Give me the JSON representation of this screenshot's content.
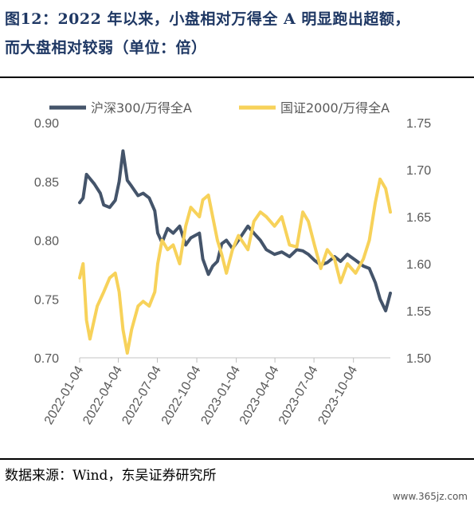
{
  "title_line1": "图12：2022 年以来，小盘相对万得全 A 明显跑出超额，",
  "title_line2": "而大盘相对较弱（单位：倍）",
  "source": "数据来源：Wind，东吴证券研究所",
  "watermark": "www.365jz.com",
  "colors": {
    "hs300": "#44546a",
    "zz2000": "#f7d25a"
  },
  "chart_data": {
    "type": "line",
    "title": "",
    "left_axis": {
      "ylim": [
        0.7,
        0.9
      ],
      "ticks": [
        "0.90",
        "0.85",
        "0.80",
        "0.75",
        "0.70"
      ]
    },
    "right_axis": {
      "ylim": [
        1.5,
        1.75
      ],
      "ticks": [
        "1.75",
        "1.70",
        "1.65",
        "1.60",
        "1.55",
        "1.50"
      ]
    },
    "x_tick_labels": [
      "2022-01-04",
      "2022-04-04",
      "2022-07-04",
      "2022-10-04",
      "2023-01-04",
      "2023-04-04",
      "2023-07-04",
      "2023-10-04"
    ],
    "x_range": [
      "2022-01-04",
      "2023-12-29"
    ],
    "legend_position": "top",
    "series": [
      {
        "name": "沪深300/万得全A",
        "axis": "left",
        "points": [
          [
            "2022-01-04",
            0.832
          ],
          [
            "2022-01-12",
            0.836
          ],
          [
            "2022-01-20",
            0.856
          ],
          [
            "2022-02-07",
            0.848
          ],
          [
            "2022-02-21",
            0.84
          ],
          [
            "2022-03-01",
            0.83
          ],
          [
            "2022-03-15",
            0.828
          ],
          [
            "2022-03-28",
            0.834
          ],
          [
            "2022-04-06",
            0.85
          ],
          [
            "2022-04-15",
            0.876
          ],
          [
            "2022-04-25",
            0.851
          ],
          [
            "2022-05-05",
            0.846
          ],
          [
            "2022-05-20",
            0.838
          ],
          [
            "2022-06-01",
            0.84
          ],
          [
            "2022-06-15",
            0.836
          ],
          [
            "2022-06-28",
            0.825
          ],
          [
            "2022-07-05",
            0.806
          ],
          [
            "2022-07-15",
            0.798
          ],
          [
            "2022-07-28",
            0.81
          ],
          [
            "2022-08-10",
            0.806
          ],
          [
            "2022-08-25",
            0.812
          ],
          [
            "2022-09-08",
            0.796
          ],
          [
            "2022-09-20",
            0.802
          ],
          [
            "2022-10-10",
            0.806
          ],
          [
            "2022-10-18",
            0.784
          ],
          [
            "2022-10-31",
            0.771
          ],
          [
            "2022-11-10",
            0.778
          ],
          [
            "2022-11-21",
            0.782
          ],
          [
            "2022-12-01",
            0.797
          ],
          [
            "2022-12-12",
            0.8
          ],
          [
            "2022-12-26",
            0.793
          ],
          [
            "2023-01-09",
            0.8
          ],
          [
            "2023-01-31",
            0.812
          ],
          [
            "2023-02-14",
            0.806
          ],
          [
            "2023-03-01",
            0.8
          ],
          [
            "2023-03-15",
            0.792
          ],
          [
            "2023-04-03",
            0.788
          ],
          [
            "2023-04-20",
            0.79
          ],
          [
            "2023-05-08",
            0.786
          ],
          [
            "2023-05-25",
            0.792
          ],
          [
            "2023-06-08",
            0.791
          ],
          [
            "2023-06-21",
            0.788
          ],
          [
            "2023-07-05",
            0.783
          ],
          [
            "2023-07-20",
            0.779
          ],
          [
            "2023-08-04",
            0.781
          ],
          [
            "2023-08-21",
            0.786
          ],
          [
            "2023-09-04",
            0.782
          ],
          [
            "2023-09-20",
            0.788
          ],
          [
            "2023-10-09",
            0.783
          ],
          [
            "2023-10-27",
            0.778
          ],
          [
            "2023-11-10",
            0.776
          ],
          [
            "2023-11-24",
            0.764
          ],
          [
            "2023-12-05",
            0.75
          ],
          [
            "2023-12-18",
            0.74
          ],
          [
            "2023-12-29",
            0.755
          ]
        ]
      },
      {
        "name": "国证2000/万得全A",
        "axis": "right",
        "points": [
          [
            "2022-01-04",
            1.585
          ],
          [
            "2022-01-12",
            1.6
          ],
          [
            "2022-01-20",
            1.54
          ],
          [
            "2022-01-28",
            1.52
          ],
          [
            "2022-02-14",
            1.555
          ],
          [
            "2022-03-01",
            1.57
          ],
          [
            "2022-03-15",
            1.585
          ],
          [
            "2022-03-28",
            1.59
          ],
          [
            "2022-04-06",
            1.57
          ],
          [
            "2022-04-15",
            1.53
          ],
          [
            "2022-04-25",
            1.505
          ],
          [
            "2022-05-05",
            1.53
          ],
          [
            "2022-05-20",
            1.555
          ],
          [
            "2022-06-01",
            1.56
          ],
          [
            "2022-06-15",
            1.555
          ],
          [
            "2022-06-28",
            1.57
          ],
          [
            "2022-07-05",
            1.6
          ],
          [
            "2022-07-15",
            1.625
          ],
          [
            "2022-07-28",
            1.615
          ],
          [
            "2022-08-10",
            1.62
          ],
          [
            "2022-08-25",
            1.6
          ],
          [
            "2022-09-08",
            1.64
          ],
          [
            "2022-09-20",
            1.66
          ],
          [
            "2022-10-10",
            1.65
          ],
          [
            "2022-10-18",
            1.668
          ],
          [
            "2022-10-31",
            1.673
          ],
          [
            "2022-11-10",
            1.65
          ],
          [
            "2022-11-21",
            1.625
          ],
          [
            "2022-12-01",
            1.61
          ],
          [
            "2022-12-12",
            1.59
          ],
          [
            "2022-12-26",
            1.615
          ],
          [
            "2023-01-09",
            1.63
          ],
          [
            "2023-01-31",
            1.615
          ],
          [
            "2023-02-14",
            1.645
          ],
          [
            "2023-03-01",
            1.655
          ],
          [
            "2023-03-15",
            1.65
          ],
          [
            "2023-04-03",
            1.64
          ],
          [
            "2023-04-20",
            1.65
          ],
          [
            "2023-05-08",
            1.62
          ],
          [
            "2023-05-25",
            1.618
          ],
          [
            "2023-06-08",
            1.655
          ],
          [
            "2023-06-21",
            1.645
          ],
          [
            "2023-07-05",
            1.62
          ],
          [
            "2023-07-20",
            1.595
          ],
          [
            "2023-08-04",
            1.615
          ],
          [
            "2023-08-21",
            1.605
          ],
          [
            "2023-09-04",
            1.58
          ],
          [
            "2023-09-20",
            1.6
          ],
          [
            "2023-10-09",
            1.59
          ],
          [
            "2023-10-27",
            1.605
          ],
          [
            "2023-11-10",
            1.625
          ],
          [
            "2023-11-24",
            1.665
          ],
          [
            "2023-12-05",
            1.69
          ],
          [
            "2023-12-18",
            1.68
          ],
          [
            "2023-12-29",
            1.655
          ]
        ]
      }
    ]
  }
}
